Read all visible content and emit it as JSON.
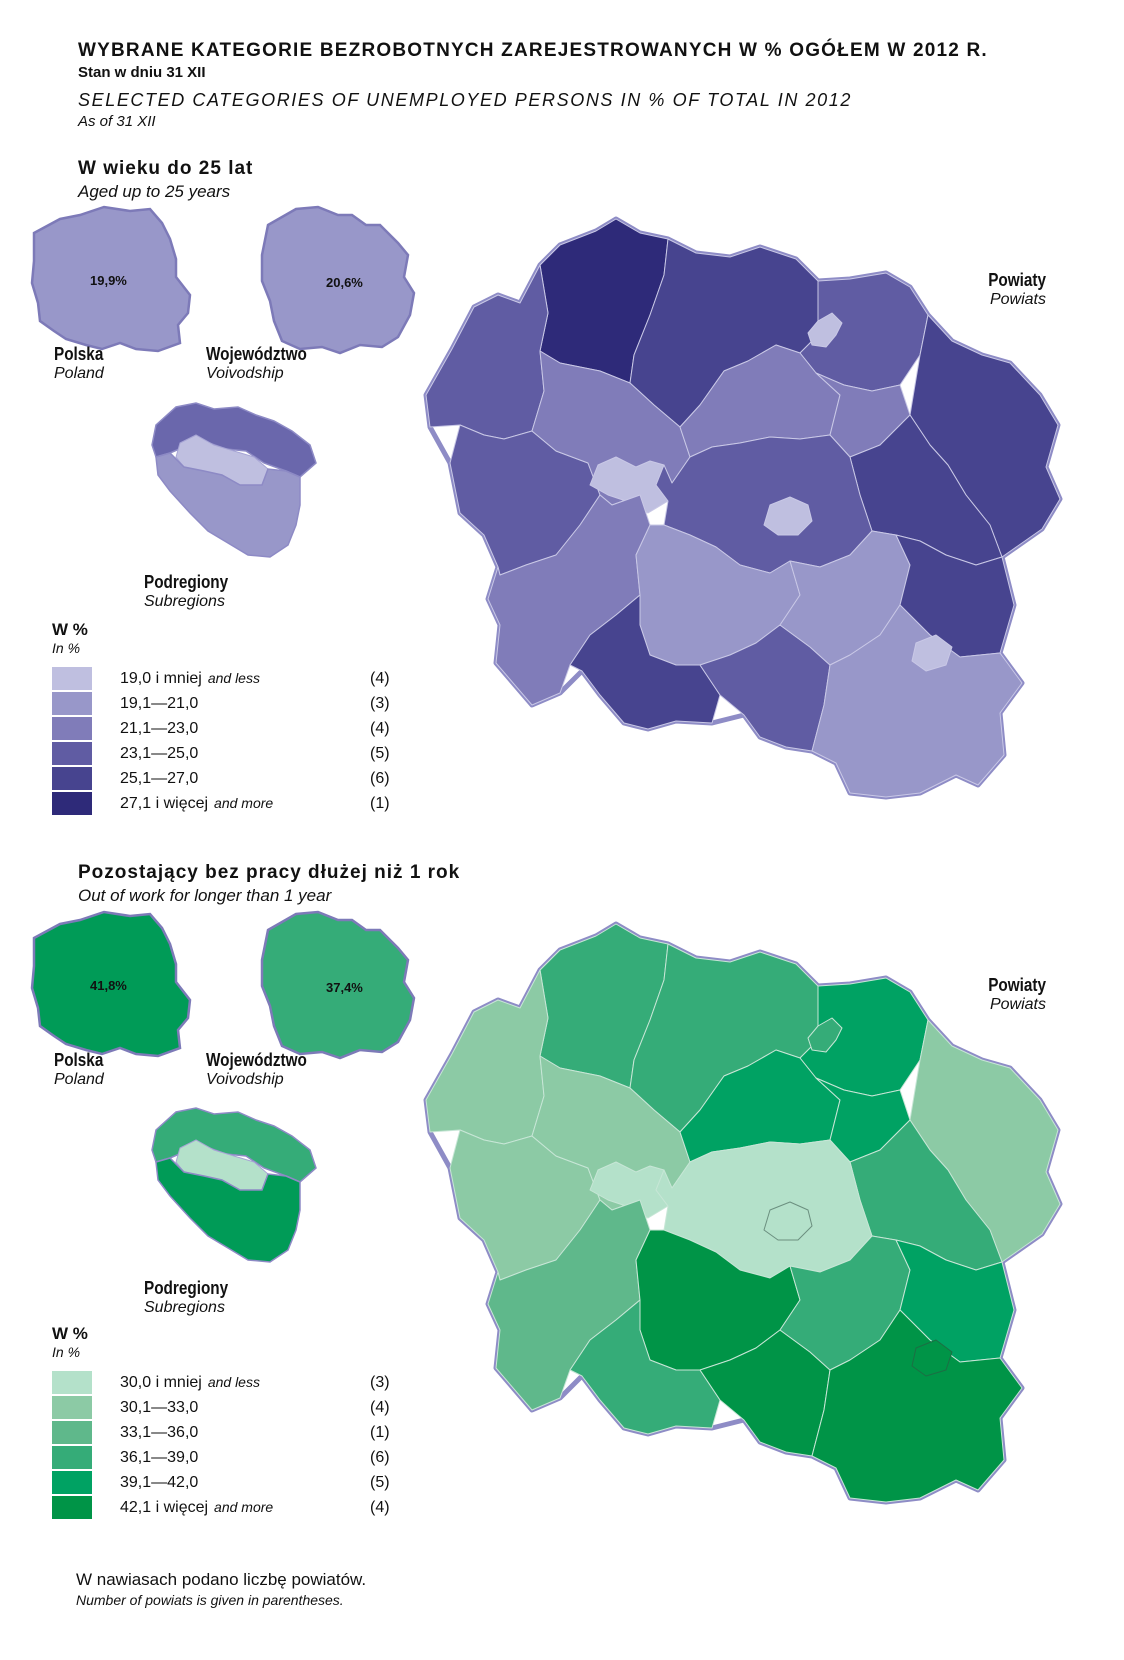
{
  "header": {
    "title_pl": "WYBRANE  KATEGORIE  BEZROBOTNYCH  ZAREJESTROWANYCH  W  %  OGÓŁEM  W  2012 R.",
    "subtitle_pl": "Stan w dniu 31 XII",
    "title_en": "SELECTED  CATEGORIES  OF  UNEMPLOYED  PERSONS  IN  %  OF  TOTAL  IN  2012",
    "subtitle_en": "As of 31 XII"
  },
  "sections": [
    {
      "title_pl": "W  wieku  do  25  lat",
      "title_en": "Aged up to 25 years",
      "poland": {
        "label_pl": "Polska",
        "label_en": "Poland",
        "value": "19,9%",
        "color": "#9897c9"
      },
      "voivodship": {
        "label_pl": "Województwo",
        "label_en": "Voivodship",
        "value": "20,6%",
        "color": "#9897c9"
      },
      "subregions": {
        "label_pl": "Podregiony",
        "label_en": "Subregions",
        "colors": [
          "#6a67ac",
          "#bfbfe0",
          "#9897c9"
        ]
      },
      "powiats": {
        "label_pl": "Powiaty",
        "label_en": "Powiats"
      },
      "legend": {
        "head_pl": "W %",
        "head_en": "In %",
        "items": [
          {
            "range": "19,0 i mniej",
            "en": "and less",
            "count": "(4)",
            "color": "#bfbfe0"
          },
          {
            "range": "19,1—21,0",
            "en": "",
            "count": "(3)",
            "color": "#9897c9"
          },
          {
            "range": "21,1—23,0",
            "en": "",
            "count": "(4)",
            "color": "#807cb9"
          },
          {
            "range": "23,1—25,0",
            "en": "",
            "count": "(5)",
            "color": "#605ca3"
          },
          {
            "range": "25,1—27,0",
            "en": "",
            "count": "(6)",
            "color": "#47448f"
          },
          {
            "range": "27,1 i więcej",
            "en": "and more",
            "count": "(1)",
            "color": "#2e2a79"
          }
        ]
      }
    },
    {
      "title_pl": "Pozostający  bez  pracy  dłużej  niż  1  rok",
      "title_en": "Out of work for longer than 1 year",
      "poland": {
        "label_pl": "Polska",
        "label_en": "Poland",
        "value": "41,8%",
        "color": "#009b57"
      },
      "voivodship": {
        "label_pl": "Województwo",
        "label_en": "Voivodship",
        "value": "37,4%",
        "color": "#35ac78"
      },
      "subregions": {
        "label_pl": "Podregiony",
        "label_en": "Subregions",
        "colors": [
          "#35ac78",
          "#b4e1ca",
          "#009b57"
        ]
      },
      "powiats": {
        "label_pl": "Powiaty",
        "label_en": "Powiats"
      },
      "legend": {
        "head_pl": "W %",
        "head_en": "In %",
        "items": [
          {
            "range": "30,0 i mniej",
            "en": "and less",
            "count": "(3)",
            "color": "#b4e1ca"
          },
          {
            "range": "30,1—33,0",
            "en": "",
            "count": "(4)",
            "color": "#8ccaa5"
          },
          {
            "range": "33,1—36,0",
            "en": "",
            "count": "(1)",
            "color": "#5fb88b"
          },
          {
            "range": "36,1—39,0",
            "en": "",
            "count": "(6)",
            "color": "#35ac78"
          },
          {
            "range": "39,1—42,0",
            "en": "",
            "count": "(5)",
            "color": "#00a263"
          },
          {
            "range": "42,1 i więcej",
            "en": "and more",
            "count": "(4)",
            "color": "#009447"
          }
        ]
      }
    }
  ],
  "footer": {
    "note_pl": "W nawiasach podano liczbę powiatów.",
    "note_en": "Number of powiats is given in parentheses."
  }
}
